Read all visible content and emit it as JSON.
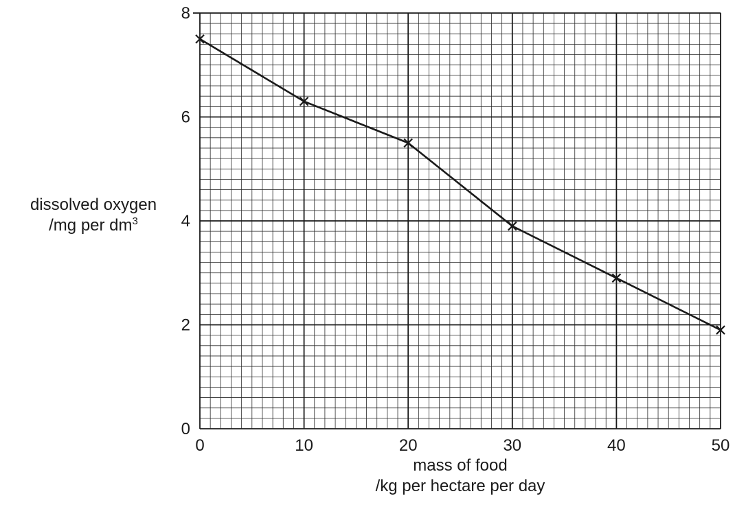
{
  "chart_data": {
    "type": "line",
    "x": [
      0,
      10,
      20,
      30,
      40,
      50
    ],
    "series": [
      {
        "values": [
          7.5,
          6.3,
          5.5,
          3.9,
          2.9,
          1.9
        ]
      }
    ],
    "marker": "x",
    "xlim": [
      0,
      50
    ],
    "ylim": [
      0,
      8
    ],
    "xticks": [
      "0",
      "10",
      "20",
      "30",
      "40",
      "50"
    ],
    "yticks": [
      "0",
      "2",
      "4",
      "6",
      "8"
    ],
    "xlabel": {
      "line1": "mass of food",
      "line2": "/kg per hectare per day"
    },
    "ylabel": {
      "line1": "dissolved oxygen",
      "line2": "/mg per dm",
      "line2_superscript": "3"
    },
    "grid": true,
    "colors": {
      "line": "#1a1a1a",
      "grid_major": "#1a1a1a",
      "grid_minor": "#2a2a2a"
    }
  }
}
